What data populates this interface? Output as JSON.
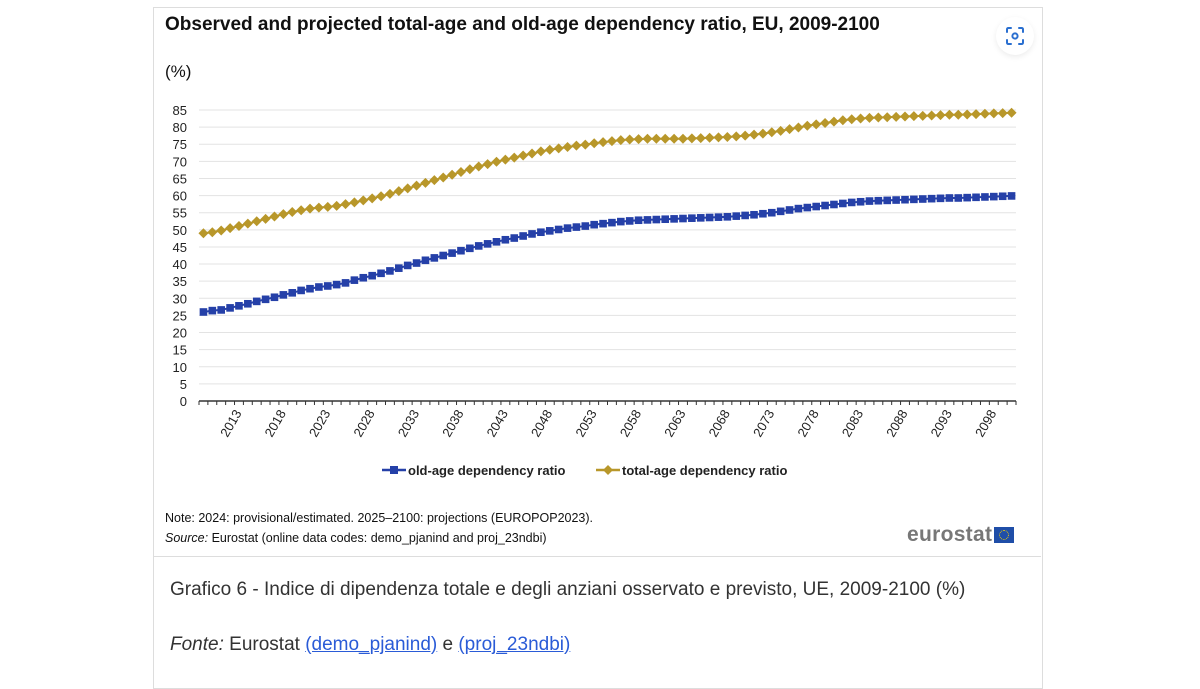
{
  "header": {
    "title": "Observed and projected total-age and old-age dependency ratio, EU, 2009-2100",
    "unit": "(%)",
    "lens_icon": "image-search-icon"
  },
  "chart_data": {
    "type": "line",
    "title": "Observed and projected total-age and old-age dependency ratio, EU, 2009-2100",
    "ylabel": "(%)",
    "xlabel": "",
    "ylim": [
      0,
      85
    ],
    "yticks": [
      "0",
      "5",
      "10",
      "15",
      "20",
      "25",
      "30",
      "35",
      "40",
      "45",
      "50",
      "55",
      "60",
      "65",
      "70",
      "75",
      "80",
      "85"
    ],
    "x_start": 2009,
    "x_end": 2100,
    "xtick_labels": [
      "2013",
      "2018",
      "2023",
      "2028",
      "2033",
      "2038",
      "2043",
      "2048",
      "2053",
      "2058",
      "2063",
      "2068",
      "2073",
      "2078",
      "2083",
      "2088",
      "2093",
      "2098"
    ],
    "grid": true,
    "legend_position": "bottom",
    "series": [
      {
        "name": "old-age dependency ratio",
        "color": "#2540a8",
        "marker": "square",
        "values": [
          26.0,
          26.4,
          26.6,
          27.2,
          27.8,
          28.4,
          29.1,
          29.7,
          30.3,
          31.0,
          31.6,
          32.3,
          32.8,
          33.3,
          33.6,
          34.0,
          34.5,
          35.3,
          36.0,
          36.6,
          37.3,
          38.0,
          38.8,
          39.6,
          40.3,
          41.1,
          41.8,
          42.5,
          43.2,
          43.9,
          44.6,
          45.3,
          45.9,
          46.5,
          47.1,
          47.6,
          48.2,
          48.8,
          49.3,
          49.7,
          50.1,
          50.5,
          50.8,
          51.1,
          51.5,
          51.8,
          52.1,
          52.4,
          52.6,
          52.8,
          52.9,
          53.0,
          53.1,
          53.2,
          53.3,
          53.4,
          53.5,
          53.6,
          53.7,
          53.8,
          54.0,
          54.2,
          54.4,
          54.7,
          55.0,
          55.4,
          55.8,
          56.2,
          56.5,
          56.8,
          57.1,
          57.4,
          57.7,
          58.0,
          58.2,
          58.4,
          58.5,
          58.6,
          58.7,
          58.8,
          58.9,
          59.0,
          59.1,
          59.2,
          59.3,
          59.3,
          59.4,
          59.5,
          59.6,
          59.7,
          59.8,
          59.9
        ]
      },
      {
        "name": "total-age dependency ratio",
        "color": "#b8972a",
        "marker": "diamond",
        "values": [
          49.0,
          49.3,
          49.8,
          50.5,
          51.1,
          51.8,
          52.5,
          53.2,
          53.9,
          54.6,
          55.2,
          55.7,
          56.2,
          56.5,
          56.7,
          57.0,
          57.5,
          58.0,
          58.6,
          59.2,
          59.8,
          60.5,
          61.3,
          62.1,
          62.9,
          63.7,
          64.5,
          65.3,
          66.1,
          66.9,
          67.7,
          68.5,
          69.2,
          69.9,
          70.5,
          71.1,
          71.7,
          72.3,
          72.9,
          73.4,
          73.8,
          74.2,
          74.6,
          74.9,
          75.3,
          75.6,
          75.9,
          76.2,
          76.4,
          76.5,
          76.6,
          76.6,
          76.6,
          76.6,
          76.6,
          76.7,
          76.8,
          76.9,
          77.0,
          77.1,
          77.3,
          77.5,
          77.8,
          78.1,
          78.5,
          78.9,
          79.4,
          79.9,
          80.4,
          80.8,
          81.2,
          81.6,
          82.0,
          82.3,
          82.5,
          82.7,
          82.8,
          82.9,
          83.0,
          83.1,
          83.2,
          83.3,
          83.4,
          83.5,
          83.6,
          83.6,
          83.7,
          83.8,
          83.9,
          84.0,
          84.1,
          84.2
        ]
      }
    ]
  },
  "footer": {
    "note": "Note: 2024: provisional/estimated. 2025–2100: projections (EUROPOP2023).",
    "source_label": "Source:",
    "source_text": " Eurostat (online data codes: demo_pjanind and proj_23ndbi)",
    "logo": "eurostat"
  },
  "caption": {
    "text": "Grafico 6 - Indice di dipendenza totale e degli anziani osservato e previsto, UE, 2009-2100 (%)",
    "fonte_label": "Fonte:",
    "fonte_text": " Eurostat ",
    "link1": "(demo_pjanind)",
    "and": " e ",
    "link2": "(proj_23ndbi)"
  }
}
